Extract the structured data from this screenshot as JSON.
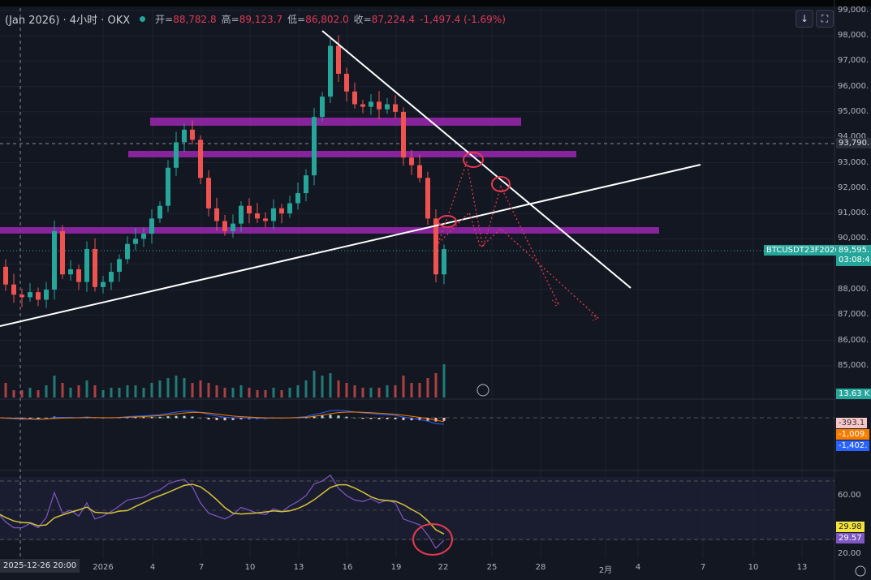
{
  "header": {
    "symbol": "(Jan 2026) · 4小时 · OKX",
    "open_label": "开=",
    "open": "88,782.8",
    "high_label": "高=",
    "high": "89,123.7",
    "low_label": "低=",
    "low": "86,802.0",
    "close_label": "收=",
    "close": "87,224.4",
    "change": "-1,497.4 (-1.69%)"
  },
  "toolbar": {
    "scroll_icon": "arrow-down-icon",
    "fullscreen_icon": "fullscreen-icon"
  },
  "price_axis": [
    "99,000.",
    "98,000.",
    "97,000.",
    "96,000.",
    "95,000.",
    "94,000.",
    "93,000.",
    "92,000.",
    "91,000.",
    "90,000.",
    "88,000.",
    "87,000.",
    "86,000.",
    "85,000."
  ],
  "crosshair": {
    "price": "93,790.",
    "time": "2025-12-26  20:00"
  },
  "last_price": {
    "symbol_tag": "BTCUSDT23F2026",
    "price": "89,595.",
    "countdown": "03:08:4"
  },
  "volume_tag": "13.63 K",
  "macd_tags": [
    "-393.1",
    "-1,009.",
    "-1,402."
  ],
  "rsi_axis": [
    "60.00",
    "20.00"
  ],
  "rsi_tags": [
    "29.98",
    "29.57"
  ],
  "time_axis": [
    "2026",
    "4",
    "7",
    "10",
    "13",
    "16",
    "19",
    "22",
    "25",
    "28",
    "2月",
    "4",
    "7",
    "10",
    "13"
  ],
  "colors": {
    "up": "#26a69a",
    "down": "#ef5350",
    "zone": "#9c27b0",
    "rsi": "#7e57c2",
    "rsi_ma": "#d4c33a",
    "annotation": "#e53950"
  },
  "chart_data": {
    "type": "candlestick",
    "interval_note": "approximate 12h closes read from chart",
    "start": "2025-12-25 12:00",
    "closes": [
      88900,
      88200,
      87800,
      87700,
      87900,
      87600,
      88000,
      90300,
      88600,
      88800,
      88300,
      89600,
      88100,
      88300,
      88700,
      89200,
      89800,
      90000,
      90200,
      90800,
      91300,
      92800,
      93800,
      94300,
      93900,
      92400,
      91200,
      90700,
      90300,
      90600,
      91300,
      91000,
      90800,
      90700,
      91200,
      91000,
      91400,
      91800,
      92500,
      94800,
      95600,
      97600,
      96500,
      95800,
      95300,
      95200,
      95400,
      95100,
      95300,
      95000,
      93200,
      92900,
      92400,
      90800,
      88600,
      89595
    ],
    "volumes": [
      4,
      6,
      3,
      3,
      4,
      3,
      5,
      9,
      6,
      4,
      5,
      7,
      5,
      3,
      4,
      4,
      5,
      5,
      4,
      6,
      7,
      8,
      9,
      8,
      6,
      7,
      6,
      5,
      4,
      4,
      5,
      4,
      3,
      3,
      4,
      3,
      4,
      5,
      7,
      11,
      9,
      10,
      7,
      6,
      5,
      4,
      4,
      4,
      5,
      5,
      9,
      6,
      6,
      8,
      10,
      13.63
    ],
    "rsi": [
      48,
      42,
      38,
      38,
      41,
      38,
      45,
      62,
      48,
      50,
      46,
      55,
      44,
      46,
      49,
      53,
      57,
      58,
      59,
      62,
      64,
      68,
      70,
      71,
      66,
      55,
      48,
      46,
      44,
      47,
      52,
      50,
      48,
      47,
      51,
      49,
      53,
      56,
      60,
      68,
      70,
      74,
      65,
      60,
      57,
      56,
      58,
      55,
      57,
      55,
      44,
      42,
      40,
      33,
      24,
      29.57
    ],
    "ylim": [
      84500,
      99100
    ],
    "rsi_levels": [
      70,
      50,
      30
    ]
  }
}
